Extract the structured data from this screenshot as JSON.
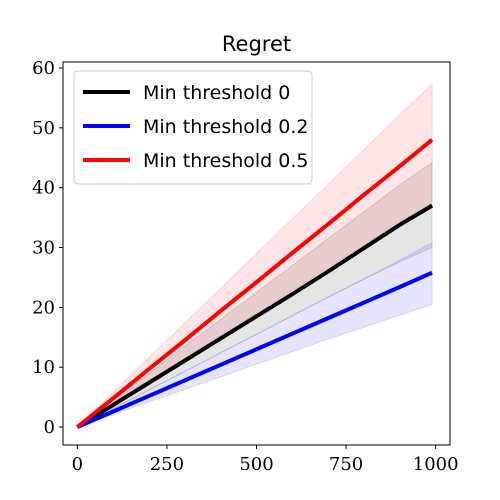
{
  "chart_data": {
    "type": "line",
    "title": "Regret",
    "xlabel": "",
    "ylabel": "",
    "xlim": [
      -40,
      1040
    ],
    "ylim": [
      -3,
      61
    ],
    "x_ticks": [
      0,
      250,
      500,
      750,
      1000
    ],
    "x_tick_labels": [
      "0",
      "250",
      "500",
      "750",
      "1000"
    ],
    "y_ticks": [
      0,
      10,
      20,
      30,
      40,
      50,
      60
    ],
    "y_tick_labels": [
      "0",
      "10",
      "20",
      "30",
      "40",
      "50",
      "60"
    ],
    "grid": false,
    "legend_position": "top-left",
    "x": [
      0,
      100,
      200,
      300,
      400,
      500,
      600,
      700,
      800,
      900,
      990
    ],
    "series": [
      {
        "name": "Min threshold 0",
        "color": "#000000",
        "values": [
          0,
          3.7,
          7.4,
          11.1,
          14.8,
          18.5,
          22.2,
          26.0,
          29.9,
          33.8,
          37.0
        ],
        "lower": [
          0,
          3.1,
          6.2,
          9.3,
          12.4,
          15.5,
          18.6,
          21.7,
          24.7,
          27.6,
          30.0
        ],
        "upper": [
          0,
          4.5,
          9.0,
          13.5,
          18.0,
          22.5,
          27.0,
          31.5,
          36.0,
          40.5,
          44.2
        ]
      },
      {
        "name": "Min threshold 0.2",
        "color": "#0000ff",
        "values": [
          0,
          2.6,
          5.2,
          7.8,
          10.4,
          13.0,
          15.6,
          18.2,
          20.8,
          23.4,
          25.8
        ],
        "lower": [
          0,
          2.1,
          4.2,
          6.3,
          8.4,
          10.5,
          12.6,
          14.7,
          16.7,
          18.7,
          20.5
        ],
        "upper": [
          0,
          3.1,
          6.2,
          9.3,
          12.4,
          15.5,
          18.6,
          21.7,
          24.8,
          27.9,
          30.8
        ]
      },
      {
        "name": "Min threshold 0.5",
        "color": "#ff0000",
        "values": [
          0,
          4.8,
          9.7,
          14.5,
          19.4,
          24.2,
          29.1,
          33.9,
          38.8,
          43.6,
          48.0
        ],
        "lower": [
          0,
          3.8,
          7.6,
          11.4,
          15.2,
          19.0,
          22.8,
          26.6,
          30.4,
          34.2,
          37.5
        ],
        "upper": [
          0,
          5.8,
          11.6,
          17.4,
          23.2,
          29.0,
          34.8,
          40.6,
          46.4,
          52.2,
          57.3
        ]
      }
    ]
  }
}
